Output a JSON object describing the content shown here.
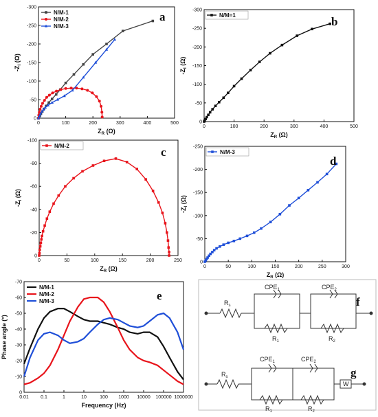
{
  "chart_data": [
    {
      "panel": "a",
      "type": "line",
      "xlabel": "Z",
      "xlabel_sub": "R",
      "xlabel_unit": " (Ω)",
      "ylabel": "-Z",
      "ylabel_sub": "I",
      "ylabel_unit": " (Ω)",
      "xlim": [
        0,
        500
      ],
      "ylim": [
        0,
        -300
      ],
      "xticks": [
        0,
        100,
        200,
        300,
        400,
        500
      ],
      "yticks": [
        0,
        -50,
        -100,
        -150,
        -200,
        -250,
        -300
      ],
      "legend": "top-left",
      "series": [
        {
          "name": "N/M-1",
          "color": "#444444",
          "marker": "square",
          "x": [
            0,
            2,
            5,
            9,
            14,
            20,
            28,
            38,
            50,
            65,
            80,
            100,
            130,
            165,
            200,
            250,
            310,
            420
          ],
          "y": [
            0,
            -3,
            -7,
            -12,
            -18,
            -25,
            -33,
            -42,
            -52,
            -64,
            -77,
            -95,
            -118,
            -145,
            -172,
            -200,
            -235,
            -262
          ]
        },
        {
          "name": "N/M-2",
          "color": "#e8141b",
          "marker": "circle",
          "x": [
            0,
            1,
            3,
            6,
            10,
            15,
            22,
            30,
            40,
            52,
            66,
            82,
            100,
            120,
            140,
            160,
            180,
            198,
            213,
            224,
            230,
            233,
            234
          ],
          "y": [
            0,
            -8,
            -16,
            -24,
            -32,
            -40,
            -48,
            -56,
            -62,
            -68,
            -73,
            -77,
            -80,
            -81,
            -81,
            -79,
            -75,
            -68,
            -58,
            -46,
            -32,
            -16,
            -3
          ]
        },
        {
          "name": "N/M-3",
          "color": "#1f4fd8",
          "marker": "triangle",
          "x": [
            0,
            3,
            7,
            12,
            18,
            25,
            35,
            50,
            70,
            95,
            125,
            165,
            210,
            250,
            280
          ],
          "y": [
            0,
            -5,
            -11,
            -17,
            -23,
            -29,
            -35,
            -42,
            -50,
            -60,
            -75,
            -110,
            -150,
            -185,
            -212
          ]
        }
      ]
    },
    {
      "panel": "b",
      "type": "line",
      "xlabel": "Z",
      "xlabel_sub": "R",
      "xlabel_unit": " (Ω)",
      "ylabel": "-Z",
      "ylabel_sub": "I",
      "ylabel_unit": " (Ω)",
      "xlim": [
        0,
        500
      ],
      "ylim": [
        0,
        -300
      ],
      "xticks": [
        0,
        100,
        200,
        300,
        400,
        500
      ],
      "yticks": [
        0,
        -50,
        -100,
        -150,
        -200,
        -250,
        -300
      ],
      "legend": "top-left",
      "series": [
        {
          "name": "N/M=1",
          "color": "#111111",
          "marker": "square",
          "x": [
            0,
            2,
            5,
            9,
            14,
            20,
            28,
            38,
            50,
            65,
            80,
            100,
            125,
            155,
            185,
            220,
            260,
            310,
            360,
            420
          ],
          "y": [
            0,
            -3,
            -7,
            -12,
            -18,
            -25,
            -33,
            -42,
            -52,
            -64,
            -77,
            -95,
            -115,
            -138,
            -160,
            -183,
            -205,
            -230,
            -248,
            -262
          ]
        }
      ]
    },
    {
      "panel": "c",
      "type": "line",
      "xlabel": "Z",
      "xlabel_sub": "R",
      "xlabel_unit": " (Ω)",
      "ylabel": "-Z",
      "ylabel_sub": "I",
      "ylabel_unit": " (Ω)",
      "xlim": [
        0,
        250
      ],
      "ylim": [
        0,
        -100
      ],
      "xticks": [
        0,
        50,
        100,
        150,
        200,
        250
      ],
      "yticks": [
        0,
        -20,
        -40,
        -60,
        -80,
        -100
      ],
      "legend": "top-left",
      "series": [
        {
          "name": "N/M-2",
          "color": "#e8141b",
          "marker": "square",
          "x": [
            0,
            0.5,
            1,
            2,
            3,
            4,
            5,
            7,
            10,
            14,
            19,
            26,
            35,
            47,
            62,
            78,
            97,
            117,
            138,
            158,
            176,
            192,
            205,
            215,
            222,
            227,
            230,
            232,
            233,
            234,
            234
          ],
          "y": [
            0,
            -2,
            -5,
            -8,
            -11,
            -14,
            -17,
            -21,
            -26,
            -32,
            -38,
            -45,
            -52,
            -60,
            -67,
            -73,
            -78,
            -82,
            -84,
            -81,
            -75,
            -66,
            -56,
            -46,
            -37,
            -28,
            -20,
            -13,
            -7,
            -3,
            0
          ]
        }
      ]
    },
    {
      "panel": "d",
      "type": "line",
      "xlabel": "Z",
      "xlabel_sub": "R",
      "xlabel_unit": " (Ω)",
      "ylabel": "-Z",
      "ylabel_sub": "I",
      "ylabel_unit": " (Ω)",
      "xlim": [
        0,
        300
      ],
      "ylim": [
        0,
        -250
      ],
      "xticks": [
        0,
        50,
        100,
        150,
        200,
        250,
        300
      ],
      "yticks": [
        0,
        -50,
        -100,
        -150,
        -200,
        -250
      ],
      "legend": "top-left",
      "series": [
        {
          "name": "N/M-3",
          "color": "#1f4fd8",
          "marker": "square",
          "x": [
            0,
            2,
            4,
            6,
            9,
            12,
            16,
            20,
            25,
            32,
            40,
            50,
            62,
            75,
            90,
            105,
            120,
            140,
            160,
            180,
            200,
            220,
            240,
            260,
            280
          ],
          "y": [
            0,
            -3,
            -6,
            -9,
            -13,
            -17,
            -21,
            -25,
            -29,
            -33,
            -37,
            -41,
            -45,
            -50,
            -56,
            -63,
            -72,
            -86,
            -103,
            -122,
            -138,
            -155,
            -172,
            -190,
            -212
          ]
        }
      ]
    },
    {
      "panel": "e",
      "type": "line",
      "xlabel": "Frequency (Hz)",
      "ylabel": "Phase angle (°)",
      "xscale": "log",
      "xlim": [
        0.01,
        1000000
      ],
      "ylim": [
        0,
        -70
      ],
      "xticks": [
        "0.01",
        "0.1",
        "1",
        "10",
        "100",
        "1000",
        "10000",
        "100000",
        "1000000"
      ],
      "yticks": [
        0,
        -10,
        -20,
        -30,
        -40,
        -50,
        -60,
        -70
      ],
      "legend": "top-left",
      "series": [
        {
          "name": "N/M-1",
          "color": "#111111",
          "x": [
            0.01,
            0.02,
            0.05,
            0.1,
            0.2,
            0.5,
            1,
            2,
            5,
            10,
            20,
            50,
            100,
            200,
            500,
            1000,
            2000,
            5000,
            10000,
            20000,
            50000,
            100000,
            200000,
            500000,
            1000000
          ],
          "y": [
            -18,
            -28,
            -40,
            -47,
            -51,
            -53,
            -53,
            -51,
            -48,
            -46,
            -45,
            -45,
            -44,
            -43,
            -41,
            -40,
            -38,
            -37,
            -38,
            -38,
            -35,
            -29,
            -22,
            -13,
            -8
          ]
        },
        {
          "name": "N/M-2",
          "color": "#e8141b",
          "x": [
            0.01,
            0.02,
            0.05,
            0.1,
            0.2,
            0.5,
            1,
            2,
            5,
            10,
            20,
            50,
            100,
            200,
            500,
            1000,
            2000,
            5000,
            10000,
            20000,
            50000,
            100000,
            200000,
            500000,
            1000000
          ],
          "y": [
            -5,
            -6,
            -9,
            -12,
            -17,
            -27,
            -36,
            -45,
            -54,
            -59,
            -60,
            -60,
            -57,
            -51,
            -41,
            -33,
            -27,
            -22,
            -20,
            -19,
            -17,
            -14,
            -11,
            -7,
            -5
          ]
        },
        {
          "name": "N/M-3",
          "color": "#1f4fd8",
          "x": [
            0.01,
            0.02,
            0.05,
            0.1,
            0.2,
            0.5,
            1,
            2,
            5,
            10,
            20,
            50,
            100,
            200,
            500,
            1000,
            2000,
            5000,
            10000,
            20000,
            50000,
            100000,
            200000,
            500000,
            1000000
          ],
          "y": [
            -10,
            -22,
            -33,
            -37,
            -38,
            -36,
            -33,
            -31,
            -32,
            -34,
            -38,
            -43,
            -46,
            -47,
            -46,
            -44,
            -42,
            -41,
            -42,
            -45,
            -49,
            -50,
            -47,
            -38,
            -27
          ]
        }
      ]
    }
  ],
  "panel_tags": {
    "a": "a",
    "b": "b",
    "c": "c",
    "d": "d",
    "e": "e",
    "f": "f",
    "g": "g"
  },
  "circuits": {
    "f": {
      "rs": "R",
      "rs_sub": "s",
      "cpe1": "CPE",
      "cpe1_sub": "1",
      "cpe2": "CPE",
      "cpe2_sub": "2",
      "r1": "R",
      "r1_sub": "1",
      "r2": "R",
      "r2_sub": "2"
    },
    "g": {
      "rs": "R",
      "rs_sub": "s",
      "cpe1": "CPE",
      "cpe1_sub": "1",
      "cpe2": "CPE",
      "cpe2_sub": "2",
      "r1": "R",
      "r1_sub": "1",
      "r2": "R",
      "r2_sub": "2",
      "w": "W"
    }
  }
}
